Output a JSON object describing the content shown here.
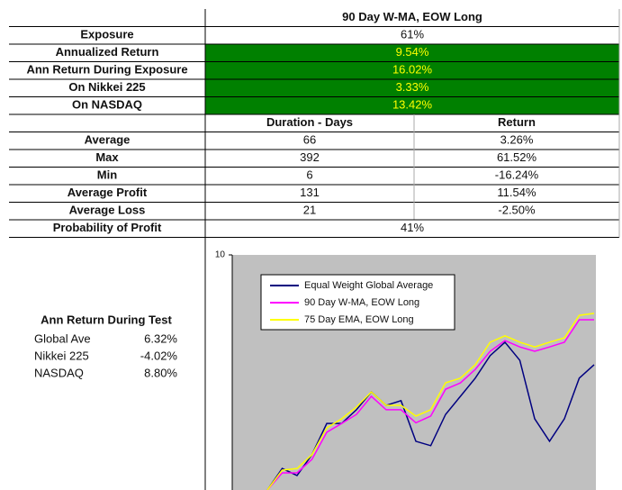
{
  "table": {
    "title": "90 Day W-MA, EOW Long",
    "summary_rows": [
      [
        "Exposure",
        "61%"
      ],
      [
        "Annualized Return",
        "9.54%"
      ],
      [
        "Ann Return During Exposure",
        "16.02%"
      ],
      [
        "On Nikkei 225",
        "3.33%"
      ],
      [
        "On NASDAQ",
        "13.42%"
      ]
    ],
    "columns": [
      "Duration - Days",
      "Return"
    ],
    "rows": [
      [
        "Average",
        "66",
        "3.26%"
      ],
      [
        "Max",
        "392",
        "61.52%"
      ],
      [
        "Min",
        "6",
        "-16.24%"
      ],
      [
        "Average Profit",
        "131",
        "11.54%"
      ],
      [
        "Average Loss",
        "21",
        "-2.50%"
      ]
    ],
    "footer_row": [
      "Probability of Profit",
      "41%"
    ]
  },
  "test_returns": {
    "title": "Ann Return During Test",
    "rows": [
      [
        "Global Ave",
        "6.32%"
      ],
      [
        "Nikkei 225",
        "-4.02%"
      ],
      [
        "NASDAQ",
        "8.80%"
      ]
    ]
  },
  "chart_data": {
    "type": "line",
    "categories": [
      null,
      null,
      null,
      null,
      null,
      null,
      null,
      null,
      null,
      null,
      null,
      null,
      null,
      null,
      null,
      null,
      null,
      null,
      null,
      null,
      null,
      null,
      null
    ],
    "series": [
      {
        "name": "Equal Weight Global Average",
        "color": "#000080",
        "values": [
          3.0,
          3.64,
          3.43,
          4.05,
          4.98,
          4.98,
          5.39,
          5.92,
          5.52,
          5.66,
          4.45,
          4.32,
          5.25,
          5.79,
          6.33,
          7.0,
          7.4,
          6.86,
          5.12,
          4.45,
          5.12,
          6.33,
          6.73
        ]
      },
      {
        "name": "90 Day W-MA, EOW Long",
        "color": "#ff00ff",
        "values": [
          3.0,
          3.51,
          3.51,
          3.91,
          4.72,
          4.98,
          5.25,
          5.79,
          5.39,
          5.39,
          5.0,
          5.2,
          6.0,
          6.19,
          6.59,
          7.13,
          7.45,
          7.26,
          7.13,
          7.26,
          7.4,
          8.07,
          8.07
        ]
      },
      {
        "name": "75 Day EMA, EOW Long",
        "color": "#ffff00",
        "values": [
          3.0,
          3.59,
          3.64,
          4.05,
          4.85,
          5.12,
          5.47,
          5.92,
          5.52,
          5.52,
          5.2,
          5.39,
          6.19,
          6.33,
          6.73,
          7.4,
          7.59,
          7.4,
          7.26,
          7.4,
          7.53,
          8.2,
          8.26
        ]
      }
    ],
    "ylim": [
      3,
      10
    ],
    "yticks": [
      10
    ],
    "plot_background": "#c0c0c0"
  }
}
